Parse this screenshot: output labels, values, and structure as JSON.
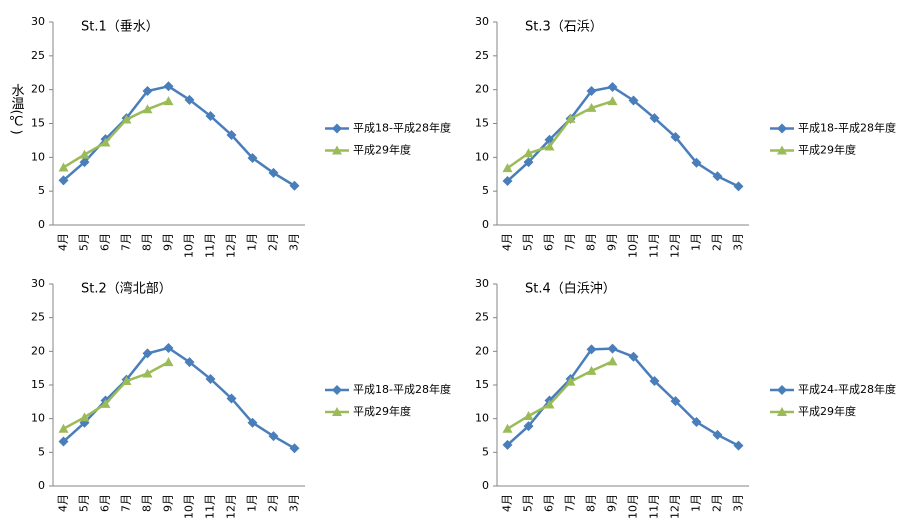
{
  "chart_data": [
    {
      "type": "line",
      "title": "St.1（垂水）",
      "y_label": "水温(℃)",
      "categories": [
        "4月",
        "5月",
        "6月",
        "7月",
        "8月",
        "9月",
        "10月",
        "11月",
        "12月",
        "1月",
        "2月",
        "3月"
      ],
      "series": [
        {
          "name": "平成18-平成28年度",
          "color": "#4a7ebb",
          "marker": "diamond",
          "values": [
            6.6,
            9.3,
            12.7,
            15.8,
            19.8,
            20.5,
            18.5,
            16.1,
            13.3,
            9.9,
            7.7,
            5.8
          ]
        },
        {
          "name": "平成29年度",
          "color": "#9bbb59",
          "marker": "triangle",
          "values": [
            8.5,
            10.4,
            12.2,
            15.6,
            17.1,
            18.3,
            null,
            null,
            null,
            null,
            null,
            null
          ]
        }
      ],
      "ylim": [
        0,
        30
      ],
      "yticks": [
        0,
        5,
        10,
        15,
        20,
        25,
        30
      ],
      "legend": "right"
    },
    {
      "type": "line",
      "title": "St.3（石浜）",
      "categories": [
        "4月",
        "5月",
        "6月",
        "7月",
        "8月",
        "9月",
        "10月",
        "11月",
        "12月",
        "1月",
        "2月",
        "3月"
      ],
      "series": [
        {
          "name": "平成18-平成28年度",
          "color": "#4a7ebb",
          "marker": "diamond",
          "values": [
            6.5,
            9.3,
            12.6,
            15.7,
            19.8,
            20.4,
            18.4,
            15.8,
            13.0,
            9.2,
            7.2,
            5.7
          ]
        },
        {
          "name": "平成29年度",
          "color": "#9bbb59",
          "marker": "triangle",
          "values": [
            8.4,
            10.6,
            11.6,
            15.7,
            17.3,
            18.3,
            null,
            null,
            null,
            null,
            null,
            null
          ]
        }
      ],
      "ylim": [
        0,
        30
      ],
      "yticks": [
        0,
        5,
        10,
        15,
        20,
        25,
        30
      ],
      "legend": "right"
    },
    {
      "type": "line",
      "title": "St.2（湾北部）",
      "categories": [
        "4月",
        "5月",
        "6月",
        "7月",
        "8月",
        "9月",
        "10月",
        "11月",
        "12月",
        "1月",
        "2月",
        "3月"
      ],
      "series": [
        {
          "name": "平成18-平成28年度",
          "color": "#4a7ebb",
          "marker": "diamond",
          "values": [
            6.6,
            9.4,
            12.7,
            15.8,
            19.7,
            20.5,
            18.4,
            15.9,
            13.0,
            9.4,
            7.4,
            5.6
          ]
        },
        {
          "name": "平成29年度",
          "color": "#9bbb59",
          "marker": "triangle",
          "values": [
            8.5,
            10.2,
            12.2,
            15.6,
            16.7,
            18.4,
            null,
            null,
            null,
            null,
            null,
            null
          ]
        }
      ],
      "ylim": [
        0,
        30
      ],
      "yticks": [
        0,
        5,
        10,
        15,
        20,
        25,
        30
      ],
      "legend": "right"
    },
    {
      "type": "line",
      "title": "St.4（白浜沖）",
      "categories": [
        "4月",
        "5月",
        "6月",
        "7月",
        "8月",
        "9月",
        "10月",
        "11月",
        "12月",
        "1月",
        "2月",
        "3月"
      ],
      "series": [
        {
          "name": "平成24-平成28年度",
          "color": "#4a7ebb",
          "marker": "diamond",
          "values": [
            6.1,
            8.9,
            12.7,
            15.9,
            20.3,
            20.4,
            19.2,
            15.6,
            12.6,
            9.5,
            7.6,
            6.0
          ]
        },
        {
          "name": "平成29年度",
          "color": "#9bbb59",
          "marker": "triangle",
          "values": [
            8.5,
            10.4,
            12.1,
            15.5,
            17.1,
            18.5,
            null,
            null,
            null,
            null,
            null,
            null
          ]
        }
      ],
      "ylim": [
        0,
        30
      ],
      "yticks": [
        0,
        5,
        10,
        15,
        20,
        25,
        30
      ],
      "legend": "right"
    }
  ]
}
